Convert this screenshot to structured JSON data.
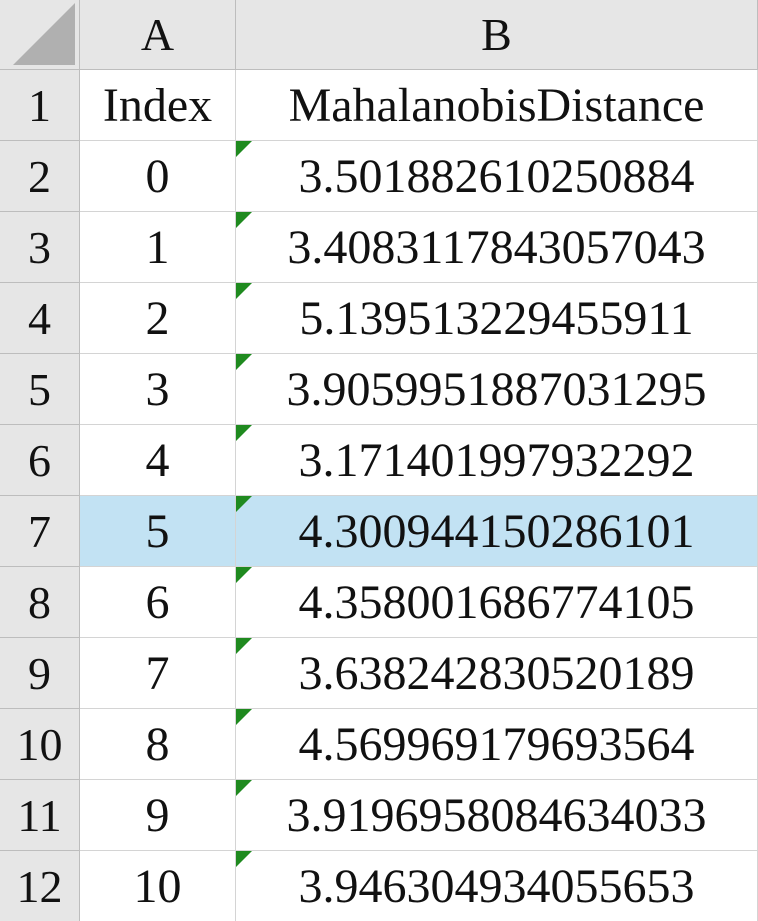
{
  "spreadsheet": {
    "column_headers": [
      "A",
      "B"
    ],
    "row_numbers": [
      "1",
      "2",
      "3",
      "4",
      "5",
      "6",
      "7",
      "8",
      "9",
      "10",
      "11",
      "12"
    ],
    "header_row": {
      "index": "Index",
      "distance": "MahalanobisDistance"
    },
    "rows": [
      {
        "index": "0",
        "distance": "3.501882610250884"
      },
      {
        "index": "1",
        "distance": "3.4083117843057043"
      },
      {
        "index": "2",
        "distance": "5.139513229455911"
      },
      {
        "index": "3",
        "distance": "3.9059951887031295"
      },
      {
        "index": "4",
        "distance": "3.171401997932292"
      },
      {
        "index": "5",
        "distance": "4.300944150286101"
      },
      {
        "index": "6",
        "distance": "4.358001686774105"
      },
      {
        "index": "7",
        "distance": "3.638242830520189"
      },
      {
        "index": "8",
        "distance": "4.569969179693564"
      },
      {
        "index": "9",
        "distance": "3.9196958084634033"
      },
      {
        "index": "10",
        "distance": "3.946304934055653"
      }
    ],
    "selected_row": "7",
    "colors": {
      "header_background": "#e6e6e6",
      "selection_highlight": "#c2e2f3",
      "text_number_indicator": "#1f8a1f",
      "gridline": "#d4d4d4"
    }
  }
}
